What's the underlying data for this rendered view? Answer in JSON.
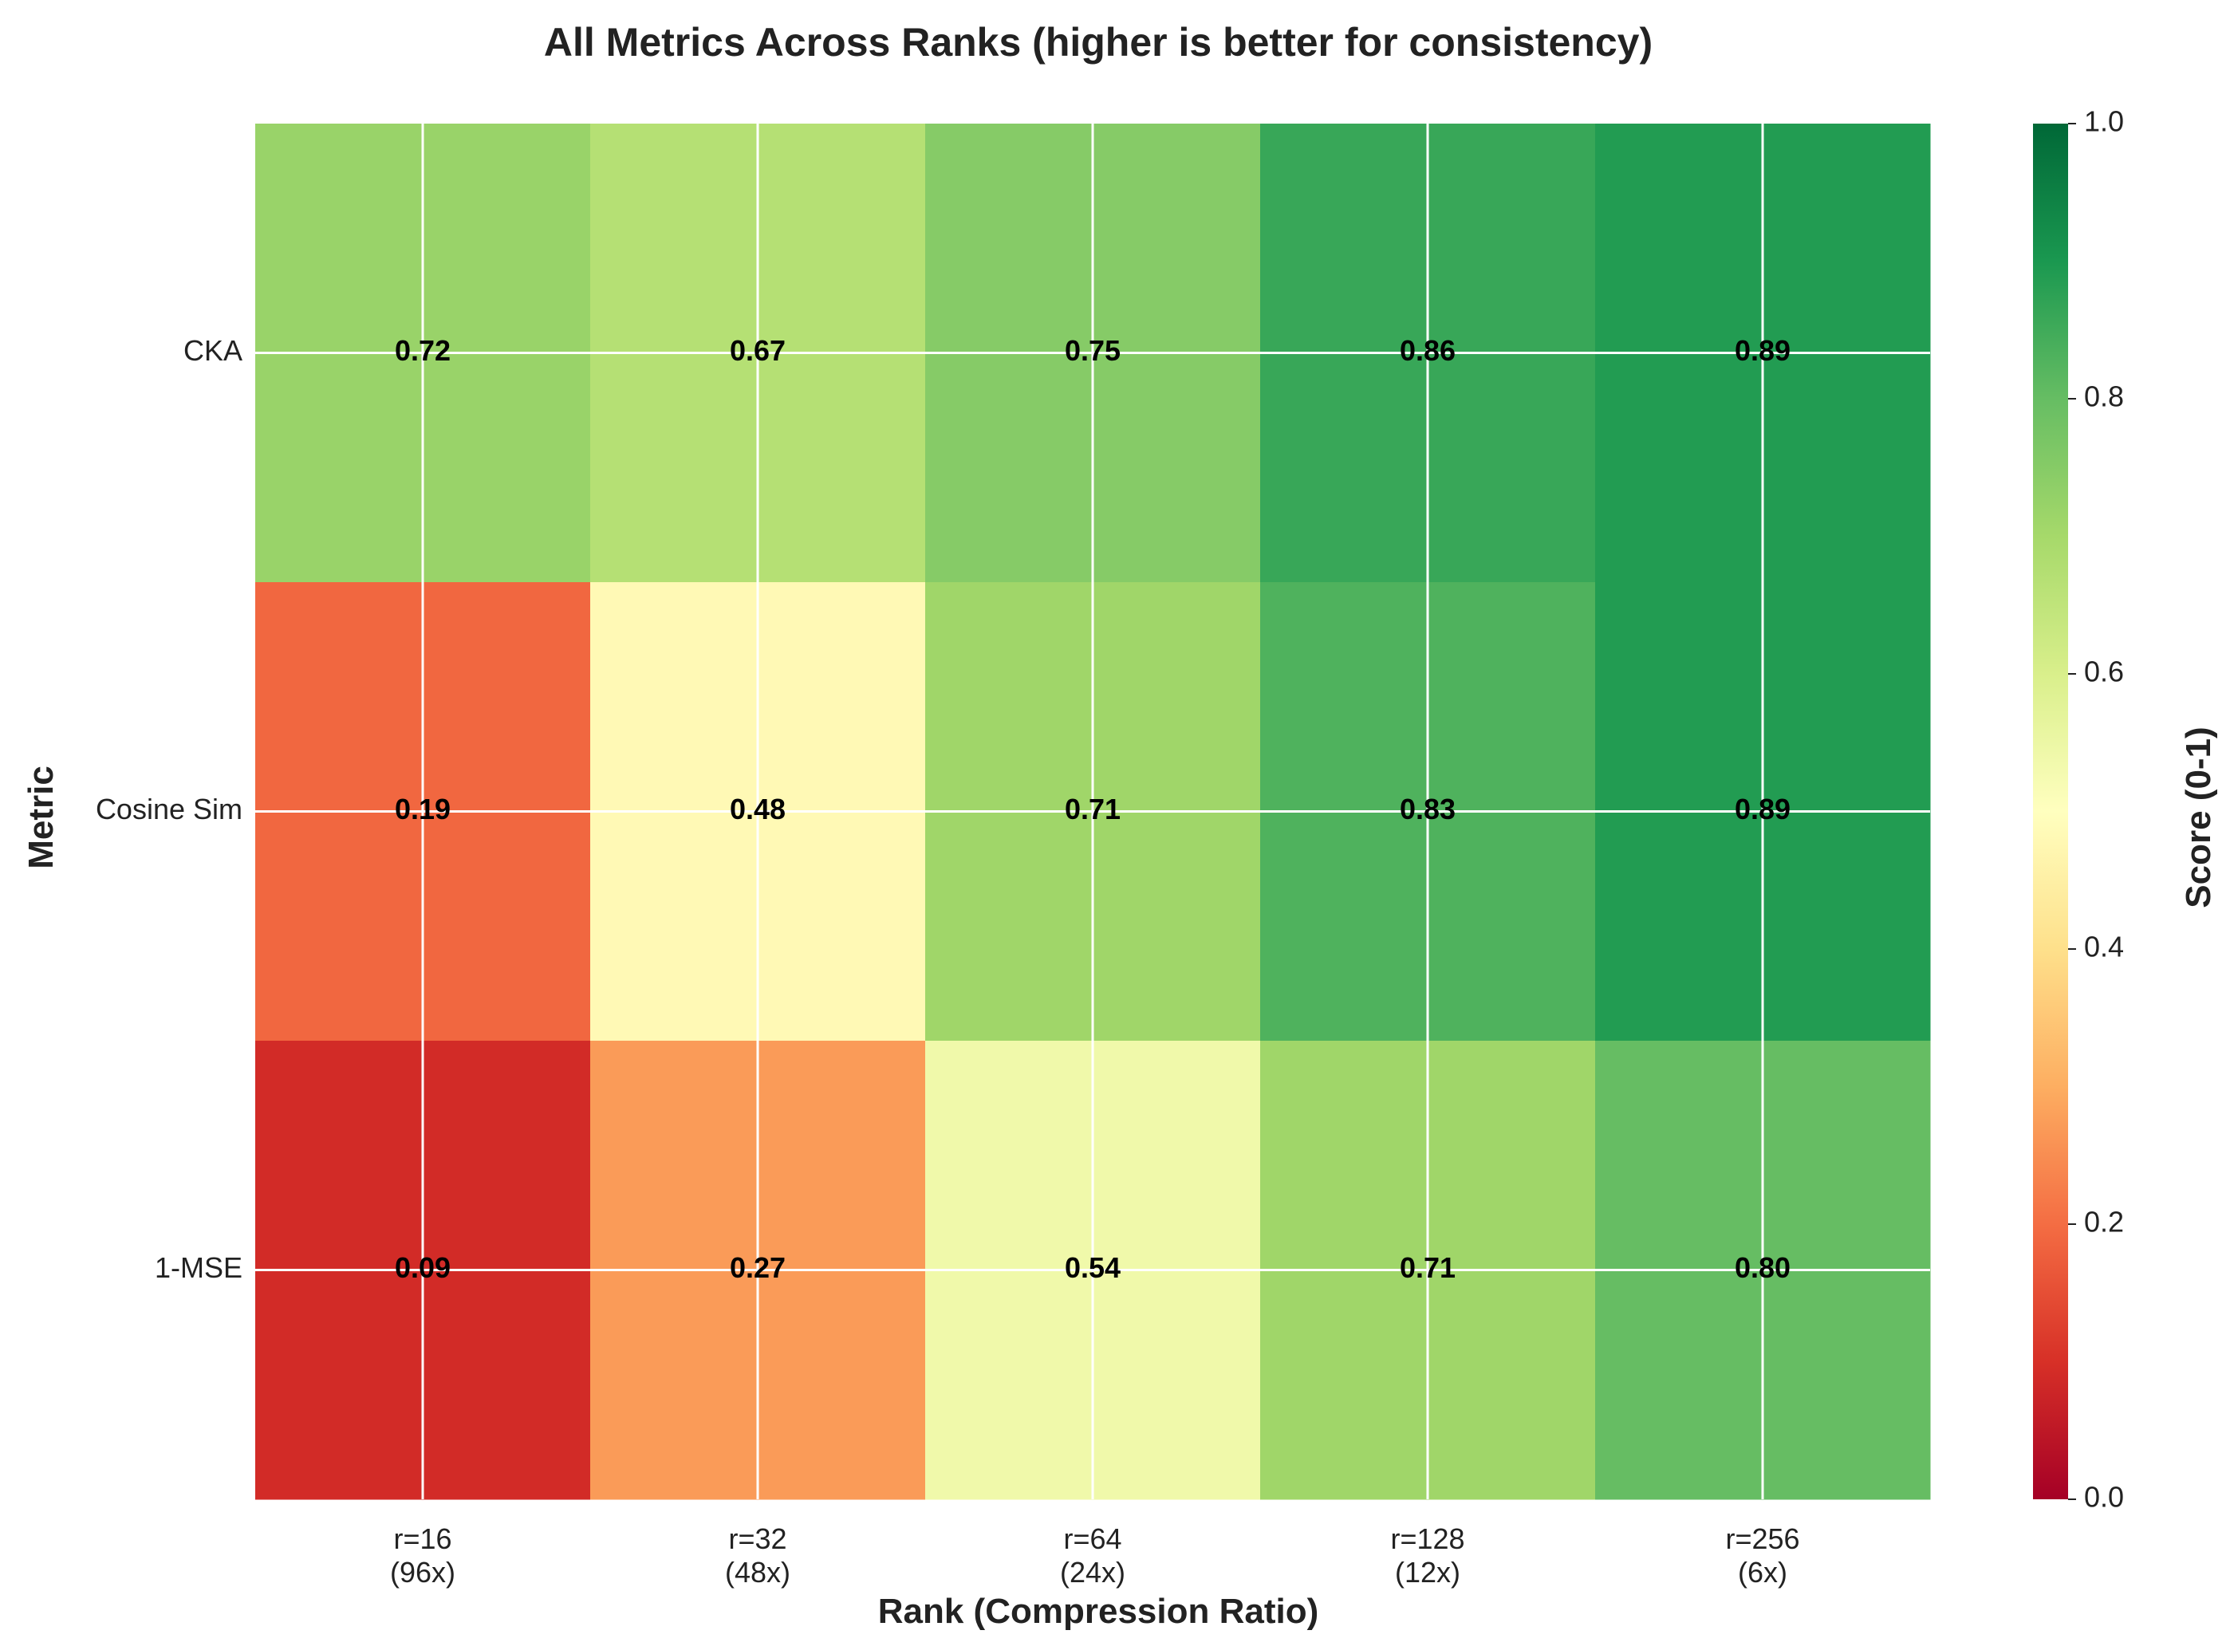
{
  "chart_data": {
    "type": "heatmap",
    "title": "All Metrics Across Ranks (higher is better for consistency)",
    "xlabel": "Rank (Compression Ratio)",
    "ylabel": "Metric",
    "x_categories": [
      [
        "r=16",
        "(96x)"
      ],
      [
        "r=32",
        "(48x)"
      ],
      [
        "r=64",
        "(24x)"
      ],
      [
        "r=128",
        "(12x)"
      ],
      [
        "r=256",
        "(6x)"
      ]
    ],
    "y_categories": [
      "CKA",
      "Cosine Sim",
      "1-MSE"
    ],
    "values": [
      [
        0.72,
        0.67,
        0.75,
        0.86,
        0.89
      ],
      [
        0.19,
        0.48,
        0.71,
        0.83,
        0.89
      ],
      [
        0.09,
        0.27,
        0.54,
        0.71,
        0.8
      ]
    ],
    "value_format": "0.00",
    "colormap": "RdYlGn",
    "colorbar": {
      "label": "Score (0-1)",
      "range": [
        0,
        1
      ],
      "ticks": [
        "0.0",
        "0.2",
        "0.4",
        "0.6",
        "0.8",
        "1.0"
      ]
    },
    "grid": true
  },
  "colors": {
    "grid": "#ffffff",
    "text": "#222222",
    "cell_text": "#000000",
    "colormap_stops": [
      "#a50026",
      "#d73027",
      "#f46d43",
      "#fdae61",
      "#fee08b",
      "#ffffbf",
      "#d9ef8b",
      "#a6d96a",
      "#66bd63",
      "#1a9850",
      "#006837"
    ]
  }
}
